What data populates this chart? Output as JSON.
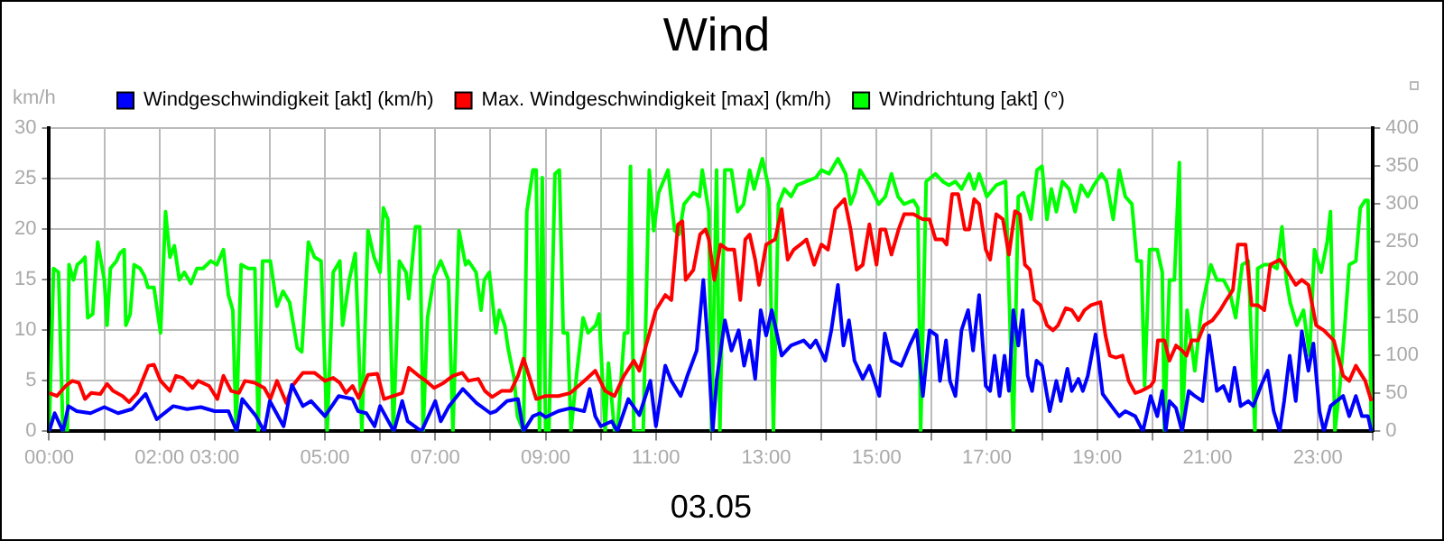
{
  "chart_data": {
    "type": "line",
    "title": "Wind",
    "xlabel": "03.05",
    "ylabel": "km/h",
    "xlim": [
      0,
      24
    ],
    "xticks": [
      {
        "value": 0,
        "label": "00:00"
      },
      {
        "value": 1,
        "label": null
      },
      {
        "value": 2,
        "label": "02:00"
      },
      {
        "value": 3,
        "label": "03:00"
      },
      {
        "value": 4,
        "label": null
      },
      {
        "value": 5,
        "label": "05:00"
      },
      {
        "value": 6,
        "label": null
      },
      {
        "value": 7,
        "label": "07:00"
      },
      {
        "value": 8,
        "label": null
      },
      {
        "value": 9,
        "label": "09:00"
      },
      {
        "value": 10,
        "label": null
      },
      {
        "value": 11,
        "label": "11:00"
      },
      {
        "value": 12,
        "label": null
      },
      {
        "value": 13,
        "label": "13:00"
      },
      {
        "value": 14,
        "label": null
      },
      {
        "value": 15,
        "label": "15:00"
      },
      {
        "value": 16,
        "label": null
      },
      {
        "value": 17,
        "label": "17:00"
      },
      {
        "value": 18,
        "label": null
      },
      {
        "value": 19,
        "label": "19:00"
      },
      {
        "value": 20,
        "label": null
      },
      {
        "value": 21,
        "label": "21:00"
      },
      {
        "value": 22,
        "label": null
      },
      {
        "value": 23,
        "label": "23:00"
      },
      {
        "value": 24,
        "label": null
      }
    ],
    "ylim": [
      0,
      30
    ],
    "yticks": [
      0,
      5,
      10,
      15,
      20,
      25,
      30
    ],
    "y2lim": [
      0,
      400
    ],
    "y2ticks": [
      0,
      50,
      100,
      150,
      200,
      250,
      300,
      350,
      400
    ],
    "grid": true,
    "legend": "top left",
    "marker": "none",
    "line_style": "solid",
    "series": [
      {
        "name": "Windgeschwindigkeit [akt] (km/h)",
        "color": "#0000ff",
        "x": [
          0,
          0.1,
          0.25,
          0.35,
          0.5,
          0.75,
          1.0,
          1.25,
          1.5,
          1.75,
          1.95,
          2.25,
          2.5,
          2.75,
          3.0,
          3.25,
          3.4,
          3.5,
          3.75,
          3.9,
          4.0,
          4.25,
          4.4,
          4.6,
          4.75,
          5.0,
          5.25,
          5.5,
          5.6,
          5.75,
          5.9,
          6.0,
          6.25,
          6.4,
          6.5,
          6.75,
          7.0,
          7.1,
          7.25,
          7.5,
          7.75,
          8.0,
          8.1,
          8.3,
          8.5,
          8.6,
          8.77,
          8.9,
          9.0,
          9.23,
          9.45,
          9.7,
          9.8,
          9.9,
          10.0,
          10.2,
          10.3,
          10.5,
          10.7,
          10.9,
          11.0,
          11.17,
          11.28,
          11.45,
          11.57,
          11.74,
          11.86,
          11.95,
          12.03,
          12.1,
          12.25,
          12.37,
          12.5,
          12.6,
          12.7,
          12.8,
          12.9,
          13.0,
          13.1,
          13.28,
          13.45,
          13.68,
          13.8,
          13.9,
          14.07,
          14.18,
          14.3,
          14.4,
          14.5,
          14.6,
          14.75,
          14.87,
          15.05,
          15.15,
          15.27,
          15.45,
          15.6,
          15.73,
          15.84,
          15.96,
          16.09,
          16.15,
          16.26,
          16.33,
          16.43,
          16.54,
          16.66,
          16.75,
          16.86,
          16.98,
          17.06,
          17.14,
          17.23,
          17.32,
          17.4,
          17.48,
          17.57,
          17.65,
          17.74,
          17.82,
          17.9,
          18.0,
          18.14,
          18.26,
          18.34,
          18.46,
          18.54,
          18.66,
          18.74,
          18.83,
          18.97,
          19.1,
          19.26,
          19.4,
          19.51,
          19.69,
          19.83,
          19.97,
          20.09,
          20.18,
          20.24,
          20.31,
          20.43,
          20.54,
          20.66,
          20.77,
          20.91,
          21.03,
          21.17,
          21.29,
          21.4,
          21.49,
          21.6,
          21.74,
          21.83,
          21.97,
          22.09,
          22.2,
          22.31,
          22.39,
          22.49,
          22.6,
          22.71,
          22.83,
          22.92,
          23.03,
          23.11,
          23.23,
          23.34,
          23.46,
          23.57,
          23.69,
          23.8,
          23.91,
          23.97
        ],
        "values": [
          0,
          1.8,
          0,
          2.5,
          2.0,
          1.8,
          2.4,
          1.8,
          2.2,
          3.7,
          1.2,
          2.5,
          2.2,
          2.4,
          2.0,
          2.0,
          0,
          3.2,
          1.5,
          0,
          3.0,
          0.5,
          4.6,
          2.5,
          3.0,
          1.5,
          3.5,
          3.2,
          2.0,
          1.8,
          0.5,
          2.5,
          0,
          3.0,
          1.0,
          0,
          3.0,
          1.0,
          2.5,
          4.2,
          2.8,
          1.8,
          2.0,
          3.0,
          3.2,
          0,
          1.5,
          1.8,
          1.4,
          2.0,
          2.3,
          2.0,
          4.2,
          1.5,
          0.5,
          1.0,
          0,
          3.2,
          1.6,
          5.0,
          0.5,
          6.5,
          5.0,
          3.5,
          5.5,
          8.0,
          15,
          8,
          0,
          5,
          11,
          8,
          10,
          6.5,
          9,
          5.2,
          12,
          9.5,
          12,
          7.5,
          8.5,
          9.0,
          8.3,
          9,
          7.0,
          10,
          14.5,
          8.5,
          11,
          7,
          5.2,
          6.5,
          3.5,
          9.7,
          7,
          6.5,
          8.5,
          10,
          3.5,
          10,
          9.5,
          5,
          9,
          5,
          3.5,
          10,
          12,
          8,
          13.5,
          4.5,
          4,
          7.5,
          3.5,
          7.5,
          4.0,
          12,
          8.5,
          12,
          5.5,
          4,
          7.0,
          6.5,
          2.0,
          5,
          3.0,
          6.2,
          4,
          5.2,
          4,
          5.5,
          9.6,
          3.7,
          2.5,
          1.5,
          2.0,
          1.5,
          0,
          3.5,
          1.5,
          4.0,
          0,
          3.0,
          2.3,
          0,
          4.0,
          3.5,
          3.0,
          9.5,
          4.0,
          4.5,
          3.0,
          6.3,
          2.5,
          3,
          2.5,
          4.5,
          6.0,
          2.0,
          0,
          3.0,
          7.5,
          3,
          9.9,
          6,
          8.7,
          2,
          0,
          2.5,
          3.0,
          3.5,
          1.5,
          3.5,
          1.5,
          1.5,
          0
        ]
      },
      {
        "name": "Max. Windgeschwindigkeit [max] (km/h)",
        "color": "#ff0000",
        "x": [
          0,
          0.14,
          0.3,
          0.42,
          0.54,
          0.65,
          0.76,
          0.93,
          1.05,
          1.16,
          1.33,
          1.45,
          1.6,
          1.8,
          1.9,
          2.02,
          2.19,
          2.3,
          2.42,
          2.6,
          2.7,
          2.9,
          3.05,
          3.16,
          3.3,
          3.44,
          3.55,
          3.73,
          3.9,
          4.01,
          4.13,
          4.3,
          4.41,
          4.6,
          4.81,
          5.0,
          5.15,
          5.27,
          5.38,
          5.5,
          5.61,
          5.78,
          5.95,
          6.07,
          6.24,
          6.4,
          6.52,
          6.7,
          6.83,
          6.98,
          7.15,
          7.32,
          7.49,
          7.6,
          7.78,
          7.9,
          8.03,
          8.2,
          8.37,
          8.5,
          8.6,
          8.7,
          8.83,
          9.0,
          9.23,
          9.45,
          9.7,
          9.9,
          10.08,
          10.25,
          10.42,
          10.6,
          10.7,
          10.82,
          11.0,
          11.17,
          11.28,
          11.4,
          11.48,
          11.54,
          11.68,
          11.8,
          11.9,
          11.96,
          12.06,
          12.17,
          12.3,
          12.42,
          12.53,
          12.62,
          12.7,
          12.8,
          12.87,
          13.0,
          13.16,
          13.28,
          13.39,
          13.5,
          13.62,
          13.73,
          13.87,
          14.0,
          14.12,
          14.25,
          14.42,
          14.53,
          14.64,
          14.75,
          14.87,
          15.0,
          15.07,
          15.16,
          15.27,
          15.4,
          15.5,
          15.67,
          15.84,
          15.96,
          16.07,
          16.2,
          16.27,
          16.37,
          16.48,
          16.6,
          16.68,
          16.77,
          16.86,
          16.98,
          17.06,
          17.17,
          17.29,
          17.4,
          17.51,
          17.6,
          17.69,
          17.78,
          17.86,
          17.97,
          18.09,
          18.2,
          18.29,
          18.43,
          18.54,
          18.66,
          18.77,
          18.89,
          19.06,
          19.15,
          19.23,
          19.34,
          19.46,
          19.57,
          19.69,
          19.8,
          19.97,
          20.03,
          20.1,
          20.22,
          20.31,
          20.43,
          20.54,
          20.62,
          20.71,
          20.83,
          20.94,
          21.09,
          21.23,
          21.34,
          21.46,
          21.55,
          21.69,
          21.8,
          21.91,
          22.03,
          22.14,
          22.31,
          22.43,
          22.6,
          22.71,
          22.83,
          22.97,
          23.11,
          23.29,
          23.46,
          23.57,
          23.69,
          23.86,
          23.97
        ],
        "values": [
          3.8,
          3.5,
          4.5,
          5.0,
          4.8,
          3.2,
          3.8,
          3.7,
          4.7,
          4.0,
          3.5,
          2.9,
          3.8,
          6.5,
          6.6,
          5.0,
          4.0,
          5.5,
          5.3,
          4.3,
          5.0,
          4.5,
          3.2,
          5.5,
          4.0,
          3.8,
          5.0,
          4.8,
          4.3,
          3.2,
          5.0,
          2.8,
          4.5,
          5.8,
          5.8,
          5.0,
          5.3,
          4.8,
          3.8,
          4.5,
          3.3,
          5.6,
          5.7,
          3.2,
          3.5,
          3.8,
          6.3,
          5.5,
          5.0,
          4.3,
          4.8,
          5.5,
          5.8,
          5.0,
          5.2,
          4.0,
          3.4,
          4.0,
          4.0,
          5.5,
          7.2,
          5.5,
          3.2,
          3.5,
          3.5,
          3.8,
          5.0,
          6.0,
          4.0,
          3.5,
          5.5,
          7.0,
          6.0,
          8.5,
          12.0,
          13.5,
          13.0,
          20.5,
          20.8,
          15.0,
          16.0,
          19.5,
          20.0,
          19.0,
          15.0,
          18.5,
          18.0,
          18.0,
          13.0,
          19,
          19.5,
          17.0,
          14.5,
          18.5,
          19.0,
          22.0,
          17.0,
          18.0,
          18.5,
          19.0,
          16.5,
          18.5,
          18.0,
          22.0,
          23.0,
          20,
          16.0,
          16.5,
          20.5,
          16.5,
          20.0,
          20.0,
          17.5,
          20,
          21.5,
          21.5,
          21.0,
          21,
          19.0,
          19.0,
          18.5,
          23.5,
          23.5,
          20.0,
          20.0,
          23.0,
          22.5,
          18.0,
          17.0,
          21.5,
          21.0,
          17.5,
          21.8,
          21.5,
          16.5,
          16.0,
          13.0,
          12.5,
          10.5,
          10.0,
          10.5,
          12.2,
          12.0,
          11.0,
          12.0,
          12.5,
          12.8,
          9.5,
          7.5,
          7.3,
          7.5,
          5.0,
          3.8,
          4.0,
          4.5,
          5.0,
          9.0,
          9.0,
          7.0,
          8.5,
          8.0,
          7.5,
          9.0,
          9.0,
          10.5,
          11.0,
          12.0,
          13.0,
          14.0,
          18.5,
          18.5,
          12.5,
          12.5,
          12.0,
          16.5,
          17.0,
          16.0,
          14.5,
          15.0,
          14.5,
          10.5,
          10.0,
          9.0,
          5.5,
          5.0,
          6.5,
          5.0,
          3.0
        ]
      },
      {
        "name": "Windrichtung [akt] (°)",
        "color": "#00ff00",
        "axis": "y2",
        "x": [
          0,
          0.08,
          0.17,
          0.25,
          0.33,
          0.36,
          0.44,
          0.51,
          0.59,
          0.65,
          0.7,
          0.79,
          0.88,
          1.0,
          1.05,
          1.11,
          1.22,
          1.28,
          1.36,
          1.39,
          1.47,
          1.54,
          1.65,
          1.73,
          1.79,
          1.9,
          2.02,
          2.11,
          2.19,
          2.27,
          2.36,
          2.45,
          2.57,
          2.68,
          2.79,
          2.93,
          3.04,
          3.16,
          3.25,
          3.33,
          3.39,
          3.48,
          3.61,
          3.73,
          3.79,
          3.87,
          4.01,
          4.13,
          4.24,
          4.36,
          4.5,
          4.58,
          4.7,
          4.81,
          4.93,
          5.04,
          5.15,
          5.27,
          5.32,
          5.44,
          5.55,
          5.67,
          5.78,
          5.89,
          6.0,
          6.06,
          6.14,
          6.24,
          6.35,
          6.47,
          6.52,
          6.64,
          6.72,
          6.78,
          6.86,
          6.98,
          7.1,
          7.24,
          7.32,
          7.43,
          7.55,
          7.6,
          7.74,
          7.83,
          7.89,
          7.98,
          8.1,
          8.16,
          8.26,
          8.32,
          8.43,
          8.49,
          8.6,
          8.66,
          8.77,
          8.83,
          8.89,
          8.94,
          9.0,
          9.06,
          9.17,
          9.25,
          9.32,
          9.4,
          9.46,
          9.57,
          9.68,
          9.77,
          9.91,
          9.97,
          10.08,
          10.14,
          10.25,
          10.31,
          10.43,
          10.49,
          10.54,
          10.6,
          10.77,
          10.88,
          10.96,
          11.05,
          11.22,
          11.34,
          11.42,
          11.51,
          11.68,
          11.79,
          11.84,
          11.96,
          12.01,
          12.1,
          12.16,
          12.25,
          12.37,
          12.48,
          12.59,
          12.7,
          12.78,
          12.93,
          13.05,
          13.13,
          13.22,
          13.33,
          13.45,
          13.56,
          13.73,
          13.9,
          14.0,
          14.14,
          14.3,
          14.44,
          14.53,
          14.61,
          14.7,
          14.87,
          15.04,
          15.16,
          15.27,
          15.39,
          15.5,
          15.67,
          15.75,
          15.8,
          15.9,
          16.07,
          16.2,
          16.31,
          16.43,
          16.54,
          16.68,
          16.77,
          16.86,
          17.0,
          17.17,
          17.34,
          17.48,
          17.57,
          17.66,
          17.8,
          17.91,
          18.0,
          18.09,
          18.17,
          18.26,
          18.37,
          18.49,
          18.6,
          18.71,
          18.83,
          18.94,
          19.08,
          19.17,
          19.29,
          19.4,
          19.51,
          19.63,
          19.72,
          19.8,
          19.86,
          19.95,
          20.09,
          20.18,
          20.22,
          20.31,
          20.4,
          20.49,
          20.54,
          20.63,
          20.77,
          20.89,
          21.06,
          21.17,
          21.29,
          21.4,
          21.51,
          21.63,
          21.74,
          21.86,
          21.91,
          22.03,
          22.14,
          22.26,
          22.35,
          22.43,
          22.5,
          22.62,
          22.74,
          22.85,
          22.94,
          23.06,
          23.17,
          23.23,
          23.31,
          23.4,
          23.49,
          23.57,
          23.69,
          23.77,
          23.86,
          23.91,
          23.97
        ],
        "values": [
          0,
          215,
          210,
          0,
          0,
          220,
          200,
          220,
          225,
          230,
          150,
          155,
          250,
          200,
          140,
          215,
          225,
          235,
          240,
          140,
          155,
          220,
          215,
          205,
          190,
          190,
          130,
          290,
          230,
          245,
          200,
          210,
          195,
          215,
          215,
          225,
          220,
          240,
          180,
          160,
          0,
          220,
          215,
          215,
          0,
          225,
          225,
          165,
          185,
          170,
          110,
          105,
          250,
          230,
          225,
          0,
          210,
          225,
          140,
          200,
          235,
          0,
          265,
          230,
          210,
          295,
          280,
          0,
          225,
          210,
          175,
          270,
          270,
          0,
          150,
          205,
          225,
          200,
          0,
          265,
          220,
          225,
          210,
          160,
          200,
          210,
          130,
          160,
          140,
          110,
          70,
          20,
          0,
          290,
          345,
          345,
          0,
          335,
          0,
          0,
          340,
          345,
          130,
          130,
          0,
          80,
          150,
          130,
          140,
          155,
          0,
          90,
          0,
          10,
          130,
          130,
          350,
          0,
          0,
          345,
          265,
          315,
          345,
          265,
          260,
          300,
          315,
          310,
          345,
          290,
          0,
          345,
          0,
          345,
          345,
          290,
          300,
          345,
          320,
          360,
          320,
          0,
          300,
          320,
          310,
          325,
          330,
          335,
          345,
          340,
          360,
          340,
          300,
          315,
          345,
          325,
          300,
          310,
          340,
          310,
          300,
          305,
          295,
          0,
          330,
          340,
          330,
          325,
          330,
          320,
          340,
          320,
          340,
          310,
          325,
          330,
          0,
          310,
          315,
          280,
          345,
          350,
          280,
          320,
          290,
          330,
          320,
          290,
          325,
          310,
          325,
          340,
          330,
          280,
          345,
          310,
          300,
          225,
          225,
          60,
          240,
          240,
          210,
          0,
          200,
          200,
          355,
          0,
          160,
          80,
          160,
          220,
          200,
          200,
          185,
          150,
          220,
          225,
          0,
          215,
          220,
          220,
          215,
          270,
          200,
          170,
          140,
          160,
          100,
          240,
          210,
          250,
          290,
          0,
          60,
          140,
          220,
          225,
          295,
          305,
          305,
          0
        ]
      }
    ]
  }
}
